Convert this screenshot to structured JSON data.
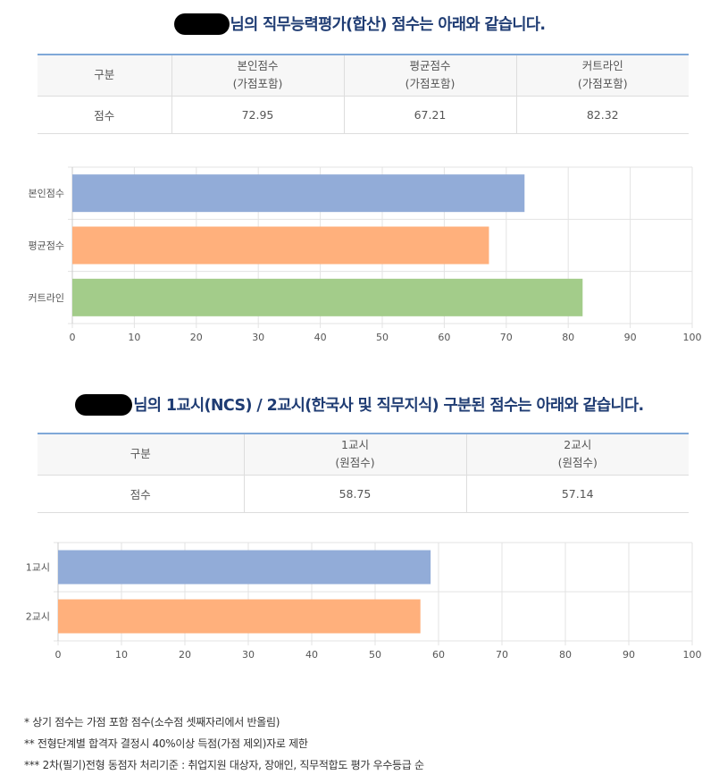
{
  "section1": {
    "title": "님의 직무능력평가(합산) 점수는 아래와 같습니다.",
    "table": {
      "headers": [
        {
          "line1": "구분",
          "line2": ""
        },
        {
          "line1": "본인점수",
          "line2": "(가점포함)"
        },
        {
          "line1": "평균점수",
          "line2": "(가점포함)"
        },
        {
          "line1": "커트라인",
          "line2": "(가점포함)"
        }
      ],
      "row": [
        "점수",
        "72.95",
        "67.21",
        "82.32"
      ]
    }
  },
  "section2": {
    "title": "님의 1교시(NCS) / 2교시(한국사 및 직무지식) 구분된 점수는 아래와 같습니다.",
    "table": {
      "headers": [
        {
          "line1": "구분",
          "line2": ""
        },
        {
          "line1": "1교시",
          "line2": "(원점수)"
        },
        {
          "line1": "2교시",
          "line2": "(원점수)"
        }
      ],
      "row": [
        "점수",
        "58.75",
        "57.14"
      ]
    }
  },
  "chart_data": [
    {
      "type": "bar",
      "orientation": "horizontal",
      "categories": [
        "본인점수",
        "평균점수",
        "커트라인"
      ],
      "values": [
        72.95,
        67.21,
        82.32
      ],
      "colors": [
        "#92acd8",
        "#ffb07c",
        "#a3cc8a"
      ],
      "xlim": [
        0,
        100
      ],
      "xticks": [
        0,
        10,
        20,
        30,
        40,
        50,
        60,
        70,
        80,
        90,
        100
      ],
      "grid": true
    },
    {
      "type": "bar",
      "orientation": "horizontal",
      "categories": [
        "1교시",
        "2교시"
      ],
      "values": [
        58.75,
        57.14
      ],
      "colors": [
        "#92acd8",
        "#ffb07c"
      ],
      "xlim": [
        0,
        100
      ],
      "xticks": [
        0,
        10,
        20,
        30,
        40,
        50,
        60,
        70,
        80,
        90,
        100
      ],
      "grid": true
    }
  ],
  "notes": [
    "* 상기 점수는 가점 포함 점수(소수점 셋째자리에서 반올림)",
    "** 전형단계별 합격자 결정시 40%이상 득점(가점 제외)자로 제한",
    "*** 2차(필기)전형 동점자 처리기준 : 취업지원 대상자, 장애인, 직무적합도 평가 우수등급 순"
  ]
}
